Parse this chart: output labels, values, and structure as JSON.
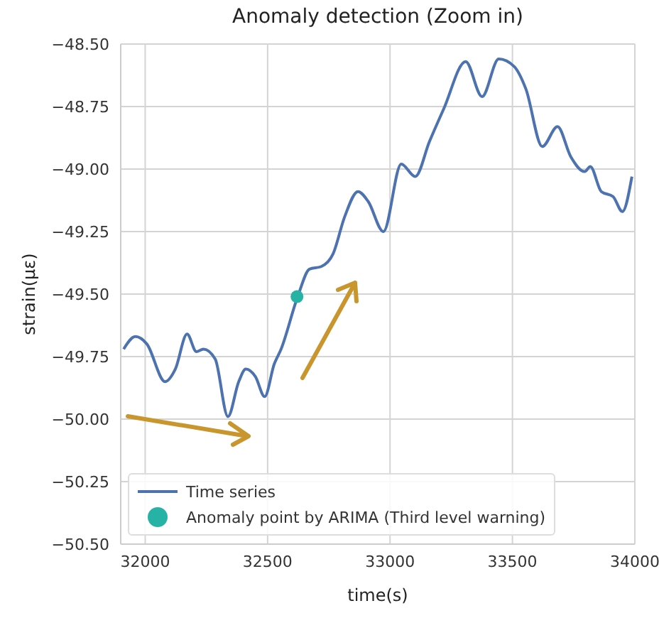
{
  "chart_data": {
    "type": "line",
    "title": "Anomaly detection (Zoom in)",
    "xlabel": "time(s)",
    "ylabel": "strain(με)",
    "xlim": [
      31900,
      34000
    ],
    "xticks": [
      32000,
      32500,
      33000,
      33500,
      34000
    ],
    "ylim": [
      -50.5,
      -48.5
    ],
    "yticks": [
      {
        "value": -50.5,
        "label": "−50.50"
      },
      {
        "value": -50.25,
        "label": "−50.25"
      },
      {
        "value": -50,
        "label": "−50.00"
      },
      {
        "value": -49.75,
        "label": "−49.75"
      },
      {
        "value": -49.5,
        "label": "−49.50"
      },
      {
        "value": -49.25,
        "label": "−49.25"
      },
      {
        "value": -49,
        "label": "−49.00"
      },
      {
        "value": -48.75,
        "label": "−48.75"
      },
      {
        "value": -48.5,
        "label": "−48.50"
      }
    ],
    "grid": true,
    "legend": "bottom left",
    "series": [
      {
        "name": "Time series",
        "color": "#4c72b0",
        "x": [
          31912,
          31960,
          32007,
          32081,
          32123,
          32171,
          32209,
          32238,
          32286,
          32338,
          32382,
          32411,
          32450,
          32488,
          32527,
          32555,
          32623,
          32671,
          32719,
          32767,
          32815,
          32869,
          32911,
          32973,
          33046,
          33103,
          33161,
          33219,
          33309,
          33376,
          33444,
          33507,
          33555,
          33622,
          33684,
          33738,
          33795,
          33818,
          33863,
          33911,
          33949,
          33988
        ],
        "values": [
          -49.72,
          -49.67,
          -49.7,
          -49.85,
          -49.8,
          -49.66,
          -49.73,
          -49.72,
          -49.76,
          -49.99,
          -49.85,
          -49.8,
          -49.83,
          -49.91,
          -49.78,
          -49.72,
          -49.51,
          -49.4,
          -49.39,
          -49.34,
          -49.19,
          -49.09,
          -49.13,
          -49.25,
          -48.98,
          -49.03,
          -48.89,
          -48.76,
          -48.57,
          -48.71,
          -48.56,
          -48.59,
          -48.68,
          -48.91,
          -48.83,
          -48.95,
          -49.01,
          -48.99,
          -49.09,
          -49.11,
          -49.17,
          -49.03
        ]
      },
      {
        "name": "Anomaly point by ARIMA (Third level warning)",
        "type": "scatter",
        "marker": "circle",
        "color": "#26b3a6",
        "x": [
          32620
        ],
        "values": [
          -49.51
        ]
      }
    ]
  }
}
